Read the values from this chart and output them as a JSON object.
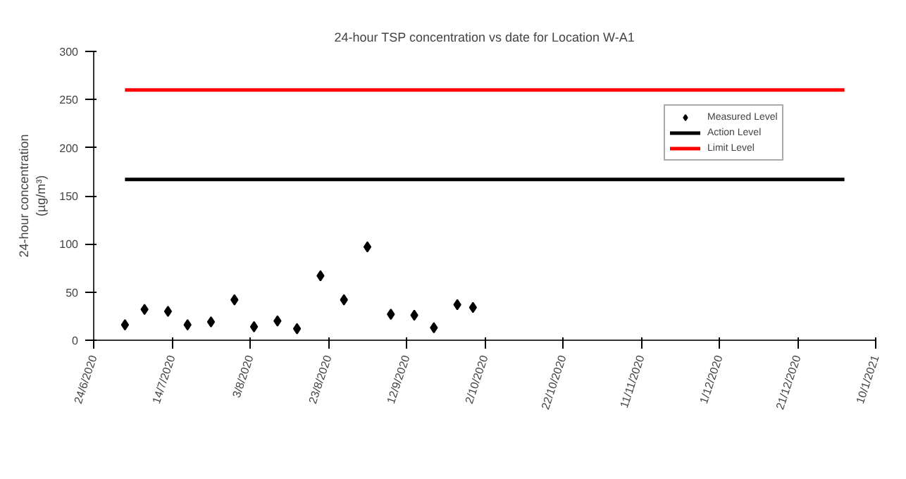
{
  "chart_data": {
    "type": "scatter",
    "title": "24-hour TSP concentration vs date for Location W-A1",
    "ylabel": "24-hour concentration\n(µg/m³)",
    "x": [
      "2020-07-02",
      "2020-07-07",
      "2020-07-13",
      "2020-07-18",
      "2020-07-24",
      "2020-07-30",
      "2020-08-04",
      "2020-08-10",
      "2020-08-15",
      "2020-08-21",
      "2020-08-27",
      "2020-09-02",
      "2020-09-08",
      "2020-09-14",
      "2020-09-19",
      "2020-09-25",
      "2020-09-29"
    ],
    "series": [
      {
        "name": "Measured Level",
        "color": "#000000",
        "values": [
          16,
          32,
          30,
          16,
          19,
          42,
          14,
          20,
          12,
          67,
          42,
          97,
          27,
          26,
          13,
          37,
          34
        ]
      }
    ],
    "ref_lines": [
      {
        "axis": "y",
        "value": 167,
        "label": "Action Level",
        "color": "#000000",
        "line_style": "solid"
      },
      {
        "axis": "y",
        "value": 260,
        "label": "Limit Level",
        "color": "#ff0000",
        "line_style": "solid"
      }
    ],
    "xlim": [
      "2020-06-24",
      "2021-01-10"
    ],
    "xticks": [
      {
        "value": "2020-06-24",
        "label": "24/6/2020"
      },
      {
        "value": "2020-07-14",
        "label": "14/7/2020"
      },
      {
        "value": "2020-08-03",
        "label": "3/8/2020"
      },
      {
        "value": "2020-08-23",
        "label": "23/8/2020"
      },
      {
        "value": "2020-09-12",
        "label": "12/9/2020"
      },
      {
        "value": "2020-10-02",
        "label": "2/10/2020"
      },
      {
        "value": "2020-10-22",
        "label": "22/10/2020"
      },
      {
        "value": "2020-11-11",
        "label": "11/11/2020"
      },
      {
        "value": "2020-12-01",
        "label": "1/12/2020"
      },
      {
        "value": "2020-12-21",
        "label": "21/12/2020"
      },
      {
        "value": "2021-01-10",
        "label": "10/1/2021"
      }
    ],
    "ylim": [
      0,
      300
    ],
    "yticks": [
      0,
      50,
      100,
      150,
      200,
      250,
      300
    ],
    "grid": false,
    "legend": "top right",
    "marker": "diamond"
  }
}
